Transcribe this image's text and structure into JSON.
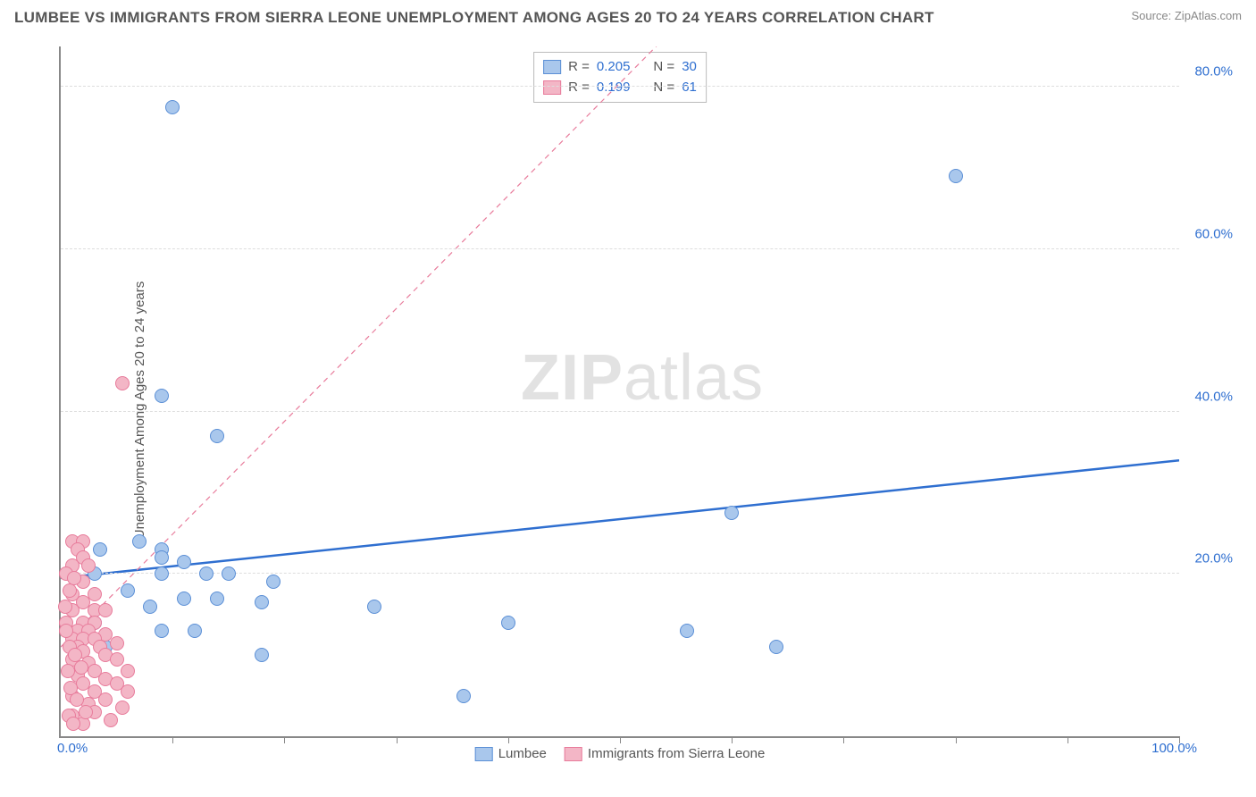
{
  "title": "LUMBEE VS IMMIGRANTS FROM SIERRA LEONE UNEMPLOYMENT AMONG AGES 20 TO 24 YEARS CORRELATION CHART",
  "source": "Source: ZipAtlas.com",
  "watermark_a": "ZIP",
  "watermark_b": "atlas",
  "ylabel": "Unemployment Among Ages 20 to 24 years",
  "chart": {
    "type": "scatter",
    "xlim": [
      0,
      100
    ],
    "ylim": [
      0,
      85
    ],
    "xgrid_ticks": [
      10,
      20,
      30,
      40,
      50,
      60,
      70,
      80,
      90,
      100
    ],
    "ygrid_ticks": [
      20,
      40,
      60,
      80
    ],
    "ytick_labels": [
      "20.0%",
      "40.0%",
      "60.0%",
      "80.0%"
    ],
    "xlim_labels": [
      "0.0%",
      "100.0%"
    ],
    "xlim_label_color": "#2f6fd0",
    "ytick_label_color": "#2f6fd0",
    "background_color": "#ffffff",
    "grid_color": "#dddddd",
    "axis_color": "#888888",
    "point_radius": 8,
    "point_stroke_width": 1.5,
    "point_fill_opacity": 0.35,
    "series": [
      {
        "name": "Lumbee",
        "color_fill": "#a9c7ec",
        "color_stroke": "#5b8fd6",
        "trend": {
          "style": "solid",
          "color": "#2f6fd0",
          "width": 2.5,
          "y_at_x0": 19.5,
          "y_at_x100": 34.0
        },
        "points": [
          [
            10,
            77.5
          ],
          [
            80,
            69
          ],
          [
            9,
            42
          ],
          [
            14,
            37
          ],
          [
            60,
            27.5
          ],
          [
            7,
            24
          ],
          [
            9,
            23
          ],
          [
            9,
            22
          ],
          [
            3.5,
            23
          ],
          [
            11,
            21.5
          ],
          [
            9,
            20
          ],
          [
            13,
            20
          ],
          [
            15,
            20
          ],
          [
            3,
            20
          ],
          [
            19,
            19
          ],
          [
            6,
            18
          ],
          [
            8,
            16
          ],
          [
            11,
            17
          ],
          [
            14,
            17
          ],
          [
            18,
            16.5
          ],
          [
            28,
            16
          ],
          [
            40,
            14
          ],
          [
            3,
            14
          ],
          [
            56,
            13
          ],
          [
            64,
            11
          ],
          [
            9,
            13
          ],
          [
            12,
            13
          ],
          [
            4,
            11
          ],
          [
            18,
            10
          ],
          [
            36,
            5
          ]
        ]
      },
      {
        "name": "Immigrants from Sierra Leone",
        "color_fill": "#f3b6c6",
        "color_stroke": "#e87b9b",
        "trend": {
          "style": "dashed",
          "color": "#e87b9b",
          "width": 1.2,
          "y_at_x0": 11,
          "y_at_x100": 150
        },
        "points": [
          [
            5.5,
            43.5
          ],
          [
            1,
            24
          ],
          [
            2,
            24
          ],
          [
            1.5,
            23
          ],
          [
            2,
            22
          ],
          [
            1,
            21
          ],
          [
            2.5,
            21
          ],
          [
            0.5,
            20
          ],
          [
            2,
            19
          ],
          [
            1,
            17.5
          ],
          [
            3,
            17.5
          ],
          [
            2,
            16.5
          ],
          [
            1,
            15.5
          ],
          [
            3,
            15.5
          ],
          [
            4,
            15.5
          ],
          [
            2,
            14
          ],
          [
            0.5,
            14
          ],
          [
            3,
            14
          ],
          [
            1.5,
            13
          ],
          [
            2.5,
            13
          ],
          [
            4,
            12.5
          ],
          [
            1,
            12
          ],
          [
            2,
            12
          ],
          [
            3,
            12
          ],
          [
            5,
            11.5
          ],
          [
            1.5,
            11
          ],
          [
            3.5,
            11
          ],
          [
            2,
            10.5
          ],
          [
            4,
            10
          ],
          [
            1,
            9.5
          ],
          [
            5,
            9.5
          ],
          [
            2.5,
            9
          ],
          [
            3,
            8
          ],
          [
            6,
            8
          ],
          [
            1.5,
            7.5
          ],
          [
            4,
            7
          ],
          [
            2,
            6.5
          ],
          [
            5,
            6.5
          ],
          [
            3,
            5.5
          ],
          [
            6,
            5.5
          ],
          [
            1,
            5
          ],
          [
            4,
            4.5
          ],
          [
            2.5,
            4
          ],
          [
            5.5,
            3.5
          ],
          [
            3,
            3
          ],
          [
            1,
            2.5
          ],
          [
            4.5,
            2
          ],
          [
            2,
            1.5
          ],
          [
            0.8,
            18
          ],
          [
            1.2,
            19.5
          ],
          [
            0.5,
            13
          ],
          [
            0.8,
            11
          ],
          [
            1.3,
            10
          ],
          [
            0.6,
            8
          ],
          [
            1.8,
            8.5
          ],
          [
            0.4,
            16
          ],
          [
            0.9,
            6
          ],
          [
            1.4,
            4.5
          ],
          [
            2.2,
            3
          ],
          [
            0.7,
            2.5
          ],
          [
            1.1,
            1.5
          ]
        ]
      }
    ]
  },
  "legend_top": {
    "rows": [
      {
        "swatch_fill": "#a9c7ec",
        "swatch_stroke": "#5b8fd6",
        "r_label": "R =",
        "r_value": "0.205",
        "n_label": "N =",
        "n_value": "30"
      },
      {
        "swatch_fill": "#f3b6c6",
        "swatch_stroke": "#e87b9b",
        "r_label": "R =",
        "r_value": "0.199",
        "n_label": "N =",
        "n_value": "61"
      }
    ],
    "label_color": "#555555",
    "value_color": "#2f6fd0"
  },
  "legend_bottom": {
    "items": [
      {
        "swatch_fill": "#a9c7ec",
        "swatch_stroke": "#5b8fd6",
        "label": "Lumbee"
      },
      {
        "swatch_fill": "#f3b6c6",
        "swatch_stroke": "#e87b9b",
        "label": "Immigrants from Sierra Leone"
      }
    ]
  }
}
